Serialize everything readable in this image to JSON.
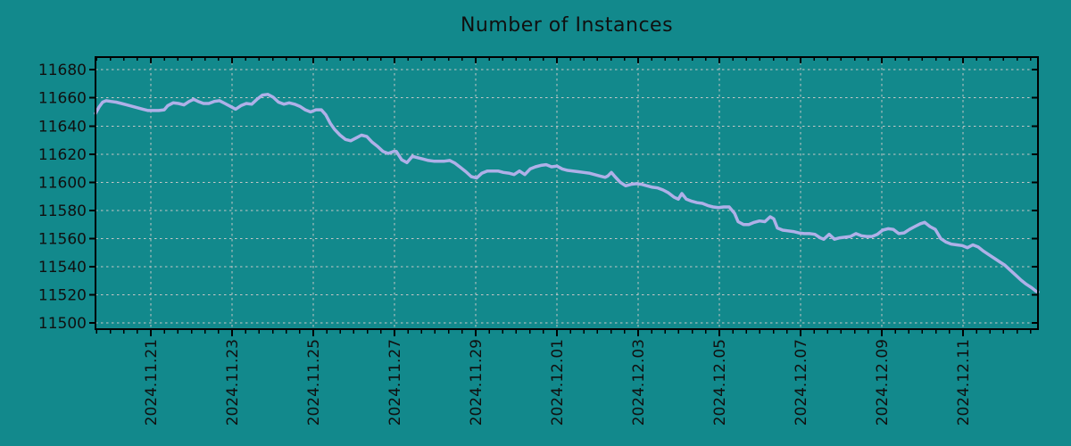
{
  "figure": {
    "background_color": "#12898c",
    "axis_color": "#000000",
    "grid_color": "#c6c6c6",
    "tick_label_color": "#101010"
  },
  "chart_data": {
    "type": "line",
    "title": "Number of Instances",
    "grid": true,
    "legend": "none",
    "x_axis": {
      "unit": "days since 2024-11-21 00:00",
      "range": [
        -1.363,
        21.846
      ],
      "minor_tick_step_days": 0.3333,
      "label_rotation_deg": 90,
      "major_ticks": [
        {
          "t": 0,
          "label": "2024.11.21"
        },
        {
          "t": 2,
          "label": "2024.11.23"
        },
        {
          "t": 4,
          "label": "2024.11.25"
        },
        {
          "t": 6,
          "label": "2024.11.27"
        },
        {
          "t": 8,
          "label": "2024.11.29"
        },
        {
          "t": 10,
          "label": "2024.12.01"
        },
        {
          "t": 12,
          "label": "2024.12.03"
        },
        {
          "t": 14,
          "label": "2024.12.05"
        },
        {
          "t": 16,
          "label": "2024.12.07"
        },
        {
          "t": 18,
          "label": "2024.12.09"
        },
        {
          "t": 20,
          "label": "2024.12.11"
        }
      ]
    },
    "y_axis": {
      "range": [
        11495.6,
        11689.0
      ],
      "ticks": [
        11500,
        11520,
        11540,
        11560,
        11580,
        11600,
        11620,
        11640,
        11660,
        11680
      ]
    },
    "series": [
      {
        "name": "instances",
        "color": "#afb0e8",
        "points": [
          [
            -1.363,
            11649
          ],
          [
            -1.275,
            11653.5
          ],
          [
            -1.187,
            11657
          ],
          [
            -1.099,
            11658
          ],
          [
            -0.989,
            11657.5
          ],
          [
            -0.857,
            11657
          ],
          [
            -0.725,
            11656
          ],
          [
            -0.593,
            11655
          ],
          [
            -0.462,
            11654
          ],
          [
            -0.33,
            11653
          ],
          [
            -0.198,
            11652
          ],
          [
            -0.066,
            11651
          ],
          [
            0.066,
            11651
          ],
          [
            0.198,
            11651
          ],
          [
            0.33,
            11651.5
          ],
          [
            0.418,
            11654.5
          ],
          [
            0.549,
            11656.5
          ],
          [
            0.681,
            11656
          ],
          [
            0.813,
            11655
          ],
          [
            0.945,
            11657.5
          ],
          [
            1.055,
            11659
          ],
          [
            1.165,
            11657.5
          ],
          [
            1.297,
            11656
          ],
          [
            1.429,
            11656
          ],
          [
            1.56,
            11657.5
          ],
          [
            1.692,
            11658
          ],
          [
            1.824,
            11656
          ],
          [
            1.956,
            11654
          ],
          [
            2.088,
            11652
          ],
          [
            2.22,
            11654.5
          ],
          [
            2.352,
            11656
          ],
          [
            2.484,
            11655.5
          ],
          [
            2.615,
            11659
          ],
          [
            2.747,
            11662
          ],
          [
            2.879,
            11662.5
          ],
          [
            3.011,
            11660.5
          ],
          [
            3.143,
            11657
          ],
          [
            3.275,
            11655.5
          ],
          [
            3.407,
            11656.5
          ],
          [
            3.538,
            11655.5
          ],
          [
            3.67,
            11654
          ],
          [
            3.802,
            11651.5
          ],
          [
            3.934,
            11650
          ],
          [
            4.066,
            11651.5
          ],
          [
            4.198,
            11651.5
          ],
          [
            4.308,
            11648
          ],
          [
            4.418,
            11642
          ],
          [
            4.527,
            11637.5
          ],
          [
            4.659,
            11633.5
          ],
          [
            4.791,
            11630.5
          ],
          [
            4.923,
            11629.5
          ],
          [
            5.055,
            11631.5
          ],
          [
            5.187,
            11633.5
          ],
          [
            5.319,
            11632.5
          ],
          [
            5.451,
            11628.5
          ],
          [
            5.582,
            11625.5
          ],
          [
            5.714,
            11622
          ],
          [
            5.846,
            11620.5
          ],
          [
            5.978,
            11622
          ],
          [
            6.044,
            11622
          ],
          [
            6.176,
            11616
          ],
          [
            6.308,
            11614
          ],
          [
            6.44,
            11618.5
          ],
          [
            6.571,
            11617.5
          ],
          [
            6.703,
            11616.5
          ],
          [
            6.835,
            11615.5
          ],
          [
            6.967,
            11615
          ],
          [
            7.099,
            11615
          ],
          [
            7.231,
            11615
          ],
          [
            7.363,
            11615.5
          ],
          [
            7.495,
            11613.5
          ],
          [
            7.626,
            11610.5
          ],
          [
            7.758,
            11607.5
          ],
          [
            7.89,
            11604
          ],
          [
            8.022,
            11603
          ],
          [
            8.154,
            11606.5
          ],
          [
            8.286,
            11608
          ],
          [
            8.418,
            11608
          ],
          [
            8.549,
            11608
          ],
          [
            8.681,
            11607
          ],
          [
            8.813,
            11606.5
          ],
          [
            8.945,
            11605.5
          ],
          [
            9.077,
            11608
          ],
          [
            9.209,
            11605.5
          ],
          [
            9.341,
            11609.5
          ],
          [
            9.473,
            11611
          ],
          [
            9.604,
            11612
          ],
          [
            9.736,
            11612.5
          ],
          [
            9.868,
            11611
          ],
          [
            10,
            11611.5
          ],
          [
            10.132,
            11609.5
          ],
          [
            10.264,
            11608.5
          ],
          [
            10.396,
            11608
          ],
          [
            10.527,
            11607.5
          ],
          [
            10.659,
            11607
          ],
          [
            10.791,
            11606.5
          ],
          [
            10.923,
            11605.5
          ],
          [
            11.055,
            11604.5
          ],
          [
            11.187,
            11603.5
          ],
          [
            11.253,
            11604.5
          ],
          [
            11.341,
            11607
          ],
          [
            11.429,
            11604
          ],
          [
            11.56,
            11600
          ],
          [
            11.692,
            11597.5
          ],
          [
            11.824,
            11598.5
          ],
          [
            11.956,
            11599
          ],
          [
            12.088,
            11598.5
          ],
          [
            12.22,
            11597.5
          ],
          [
            12.352,
            11596.5
          ],
          [
            12.484,
            11596
          ],
          [
            12.615,
            11594.5
          ],
          [
            12.747,
            11592.5
          ],
          [
            12.879,
            11589.5
          ],
          [
            12.989,
            11588
          ],
          [
            13.077,
            11592
          ],
          [
            13.187,
            11588
          ],
          [
            13.319,
            11586.5
          ],
          [
            13.451,
            11585.5
          ],
          [
            13.582,
            11585
          ],
          [
            13.714,
            11583.5
          ],
          [
            13.846,
            11582.5
          ],
          [
            13.978,
            11582
          ],
          [
            14.11,
            11582.5
          ],
          [
            14.242,
            11582.5
          ],
          [
            14.374,
            11578
          ],
          [
            14.462,
            11572
          ],
          [
            14.593,
            11570
          ],
          [
            14.725,
            11570
          ],
          [
            14.857,
            11571.5
          ],
          [
            14.989,
            11572.5
          ],
          [
            15.121,
            11572
          ],
          [
            15.253,
            11575.5
          ],
          [
            15.341,
            11574
          ],
          [
            15.429,
            11567.5
          ],
          [
            15.56,
            11566
          ],
          [
            15.692,
            11565.5
          ],
          [
            15.824,
            11565
          ],
          [
            15.956,
            11564
          ],
          [
            16.088,
            11563.5
          ],
          [
            16.22,
            11563.5
          ],
          [
            16.352,
            11563
          ],
          [
            16.484,
            11560.5
          ],
          [
            16.571,
            11559.5
          ],
          [
            16.703,
            11563
          ],
          [
            16.835,
            11559.5
          ],
          [
            16.967,
            11560.5
          ],
          [
            17.099,
            11561
          ],
          [
            17.231,
            11561.5
          ],
          [
            17.363,
            11563.5
          ],
          [
            17.495,
            11562
          ],
          [
            17.626,
            11561.5
          ],
          [
            17.758,
            11561.5
          ],
          [
            17.89,
            11563
          ],
          [
            18.022,
            11566
          ],
          [
            18.154,
            11567
          ],
          [
            18.286,
            11566.5
          ],
          [
            18.418,
            11563.5
          ],
          [
            18.549,
            11564
          ],
          [
            18.681,
            11566.5
          ],
          [
            18.813,
            11568.5
          ],
          [
            18.945,
            11570.5
          ],
          [
            19.055,
            11571.5
          ],
          [
            19.187,
            11568.5
          ],
          [
            19.319,
            11566.5
          ],
          [
            19.451,
            11560
          ],
          [
            19.582,
            11557.5
          ],
          [
            19.714,
            11556
          ],
          [
            19.846,
            11555.5
          ],
          [
            19.978,
            11555
          ],
          [
            20.11,
            11553.5
          ],
          [
            20.242,
            11555.5
          ],
          [
            20.374,
            11554
          ],
          [
            20.505,
            11551
          ],
          [
            20.637,
            11548.5
          ],
          [
            20.769,
            11546
          ],
          [
            20.901,
            11543.5
          ],
          [
            21.033,
            11541
          ],
          [
            21.165,
            11537.5
          ],
          [
            21.297,
            11534
          ],
          [
            21.429,
            11530.5
          ],
          [
            21.56,
            11527.5
          ],
          [
            21.692,
            11525
          ],
          [
            21.802,
            11522.5
          ],
          [
            21.846,
            11522
          ]
        ]
      }
    ]
  }
}
